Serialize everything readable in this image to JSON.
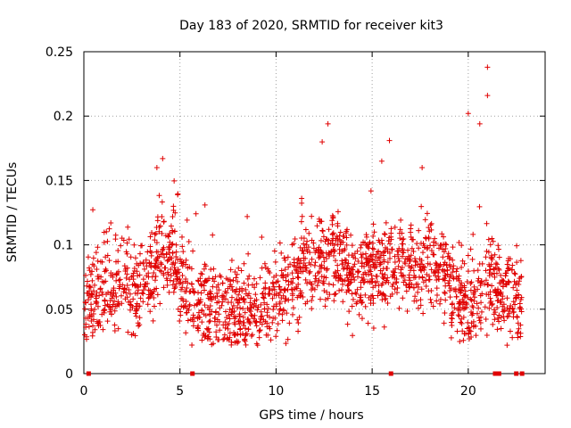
{
  "chart_data": {
    "type": "scatter",
    "title": "Day 183 of 2020, SRMTID for receiver kit3",
    "xlabel": "GPS time / hours",
    "ylabel": "SRMTID / TECUs",
    "xlim": [
      0,
      24
    ],
    "ylim": [
      0,
      0.25
    ],
    "x_ticks": [
      0,
      5,
      10,
      15,
      20
    ],
    "x_tick_labels": [
      "0",
      "5",
      "10",
      "15",
      "20"
    ],
    "y_ticks": [
      0,
      0.05,
      0.1,
      0.15,
      0.2,
      0.25
    ],
    "y_tick_labels": [
      "0",
      "0.05",
      "0.1",
      "0.15",
      "0.2",
      "0.25"
    ],
    "grid": true,
    "marker": "plus",
    "color": "#e00000",
    "trend": [
      {
        "x": 0,
        "y": 0.06
      },
      {
        "x": 1,
        "y": 0.062
      },
      {
        "x": 2,
        "y": 0.072
      },
      {
        "x": 3,
        "y": 0.065
      },
      {
        "x": 4,
        "y": 0.09
      },
      {
        "x": 4.6,
        "y": 0.095
      },
      {
        "x": 5,
        "y": 0.07
      },
      {
        "x": 6,
        "y": 0.055
      },
      {
        "x": 7,
        "y": 0.052
      },
      {
        "x": 8,
        "y": 0.045
      },
      {
        "x": 9,
        "y": 0.055
      },
      {
        "x": 10,
        "y": 0.062
      },
      {
        "x": 11,
        "y": 0.075
      },
      {
        "x": 12,
        "y": 0.085
      },
      {
        "x": 13,
        "y": 0.095
      },
      {
        "x": 14,
        "y": 0.075
      },
      {
        "x": 15,
        "y": 0.08
      },
      {
        "x": 16,
        "y": 0.085
      },
      {
        "x": 17,
        "y": 0.08
      },
      {
        "x": 18,
        "y": 0.088
      },
      {
        "x": 19,
        "y": 0.07
      },
      {
        "x": 20,
        "y": 0.05
      },
      {
        "x": 21,
        "y": 0.075
      },
      {
        "x": 22,
        "y": 0.06
      },
      {
        "x": 22.8,
        "y": 0.055
      }
    ],
    "notable_points": [
      {
        "x": 21.0,
        "y": 0.238
      },
      {
        "x": 21.0,
        "y": 0.216
      },
      {
        "x": 20.0,
        "y": 0.202
      },
      {
        "x": 12.7,
        "y": 0.194
      },
      {
        "x": 15.9,
        "y": 0.181
      },
      {
        "x": 4.1,
        "y": 0.167
      },
      {
        "x": 3.8,
        "y": 0.16
      },
      {
        "x": 17.6,
        "y": 0.16
      },
      {
        "x": 20.6,
        "y": 0.194
      },
      {
        "x": 12.4,
        "y": 0.18
      },
      {
        "x": 15.5,
        "y": 0.165
      },
      {
        "x": 6.3,
        "y": 0.131
      }
    ],
    "points_on_zero": [
      0.25,
      5.65,
      15.98,
      21.4,
      21.6,
      22.5,
      22.8
    ]
  }
}
